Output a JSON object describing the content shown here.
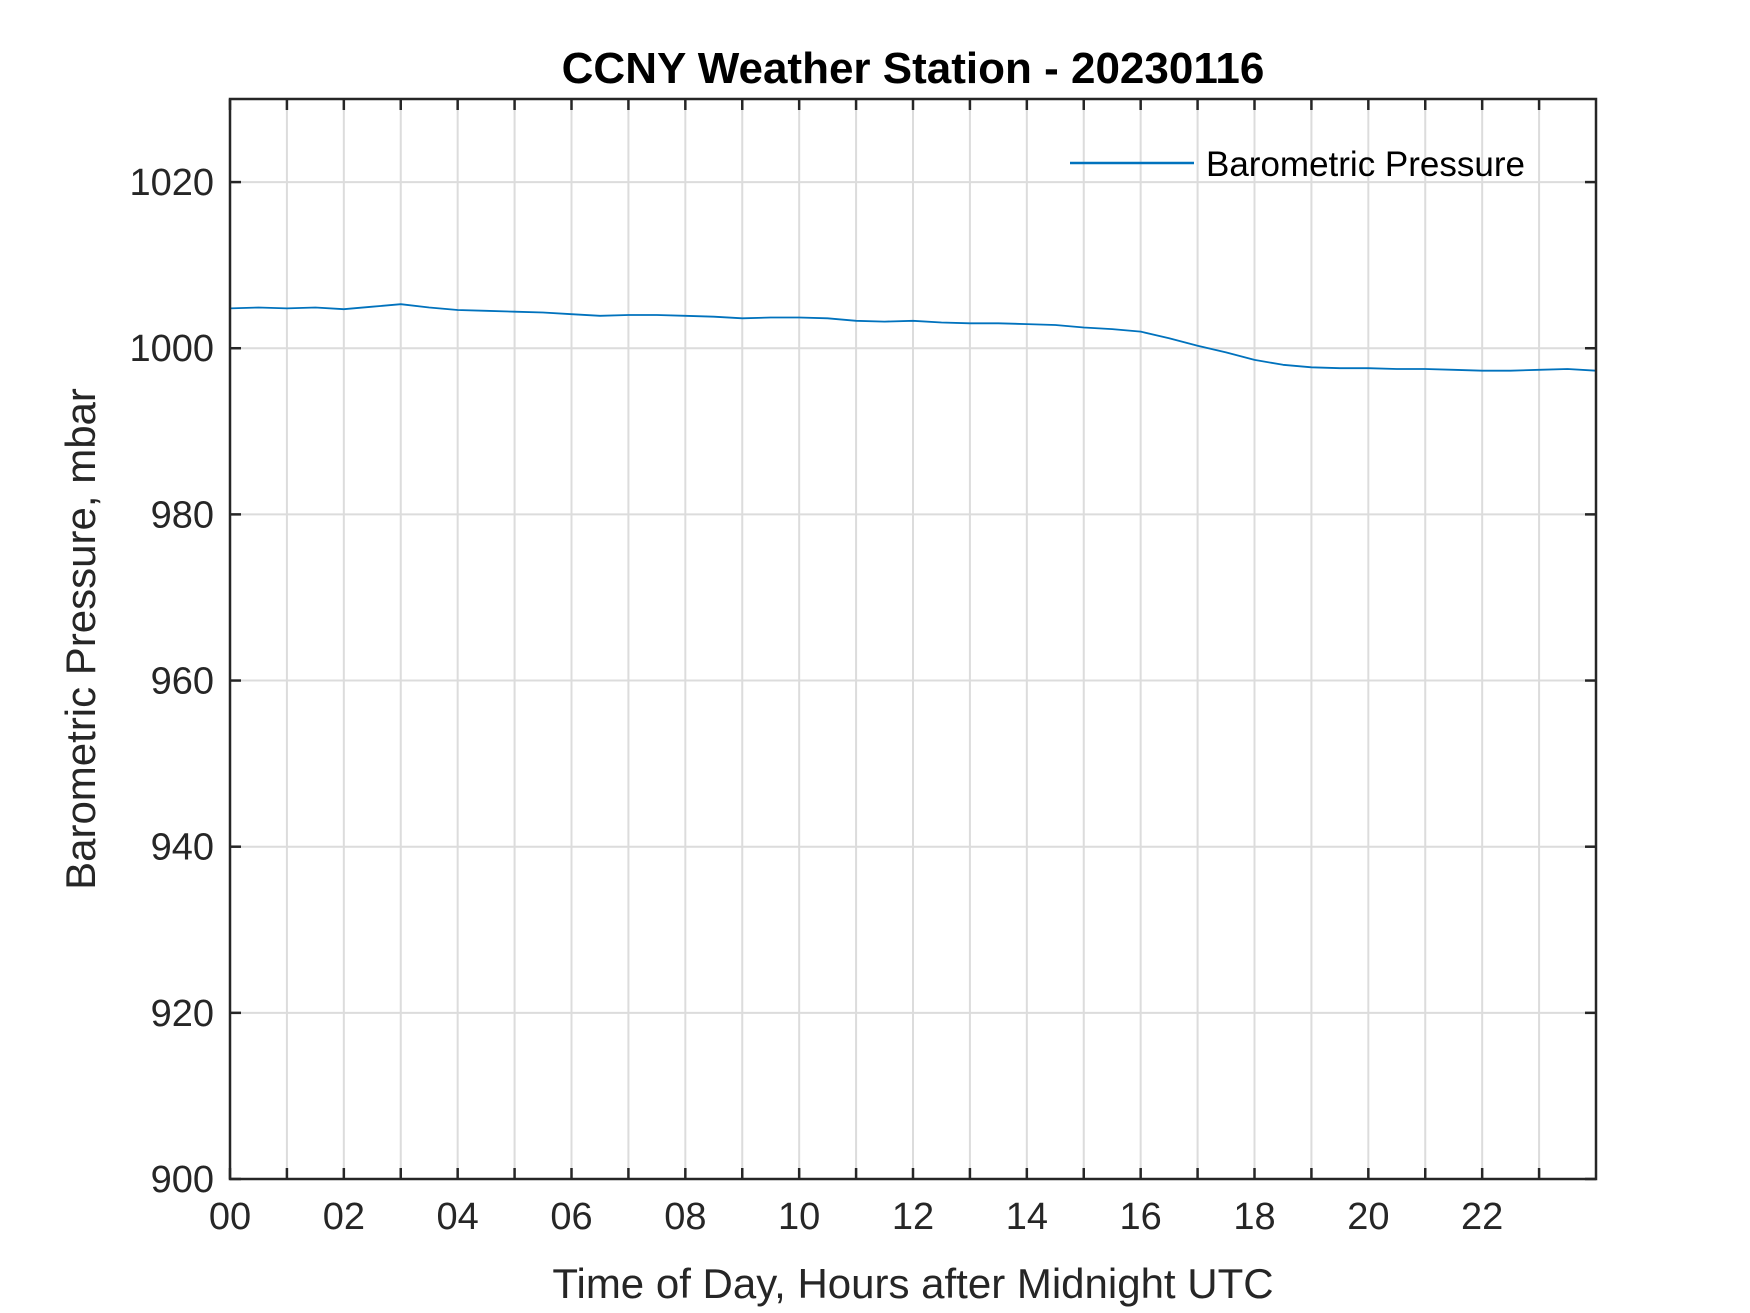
{
  "chart_data": {
    "type": "line",
    "title": "CCNY Weather Station - 20230116",
    "xlabel": "Time of Day, Hours after Midnight UTC",
    "ylabel": "Barometric Pressure, mbar",
    "xlim": [
      0,
      24
    ],
    "ylim": [
      900,
      1030
    ],
    "x_ticks": [
      0,
      2,
      4,
      6,
      8,
      10,
      12,
      14,
      16,
      18,
      20,
      22
    ],
    "x_tick_labels": [
      "00",
      "02",
      "04",
      "06",
      "08",
      "10",
      "12",
      "14",
      "16",
      "18",
      "20",
      "22"
    ],
    "x_minor_ticks": [
      1,
      3,
      5,
      7,
      9,
      11,
      13,
      15,
      17,
      19,
      21,
      23
    ],
    "y_ticks": [
      900,
      920,
      940,
      960,
      980,
      1000,
      1020
    ],
    "y_tick_labels": [
      "900",
      "920",
      "940",
      "960",
      "980",
      "1000",
      "1020"
    ],
    "grid": true,
    "legend_position": "top-right",
    "series": [
      {
        "name": "Barometric Pressure",
        "color": "#0072BD",
        "x": [
          0,
          0.5,
          1,
          1.5,
          2,
          2.5,
          3,
          3.5,
          4,
          4.5,
          5,
          5.5,
          6,
          6.5,
          7,
          7.5,
          8,
          8.5,
          9,
          9.5,
          10,
          10.5,
          11,
          11.5,
          12,
          12.5,
          13,
          13.5,
          14,
          14.5,
          15,
          15.5,
          16,
          16.5,
          17,
          17.5,
          18,
          18.5,
          19,
          19.5,
          20,
          20.5,
          21,
          21.5,
          22,
          22.5,
          23,
          23.5,
          24
        ],
        "y": [
          1004.8,
          1004.9,
          1004.8,
          1004.9,
          1004.7,
          1005.0,
          1005.3,
          1004.9,
          1004.6,
          1004.5,
          1004.4,
          1004.3,
          1004.1,
          1003.9,
          1004.0,
          1004.0,
          1003.9,
          1003.8,
          1003.6,
          1003.7,
          1003.7,
          1003.6,
          1003.3,
          1003.2,
          1003.3,
          1003.1,
          1003.0,
          1003.0,
          1002.9,
          1002.8,
          1002.5,
          1002.3,
          1002.0,
          1001.2,
          1000.3,
          999.5,
          998.6,
          998.0,
          997.7,
          997.6,
          997.6,
          997.5,
          997.5,
          997.4,
          997.3,
          997.3,
          997.4,
          997.5,
          997.3
        ]
      }
    ]
  }
}
